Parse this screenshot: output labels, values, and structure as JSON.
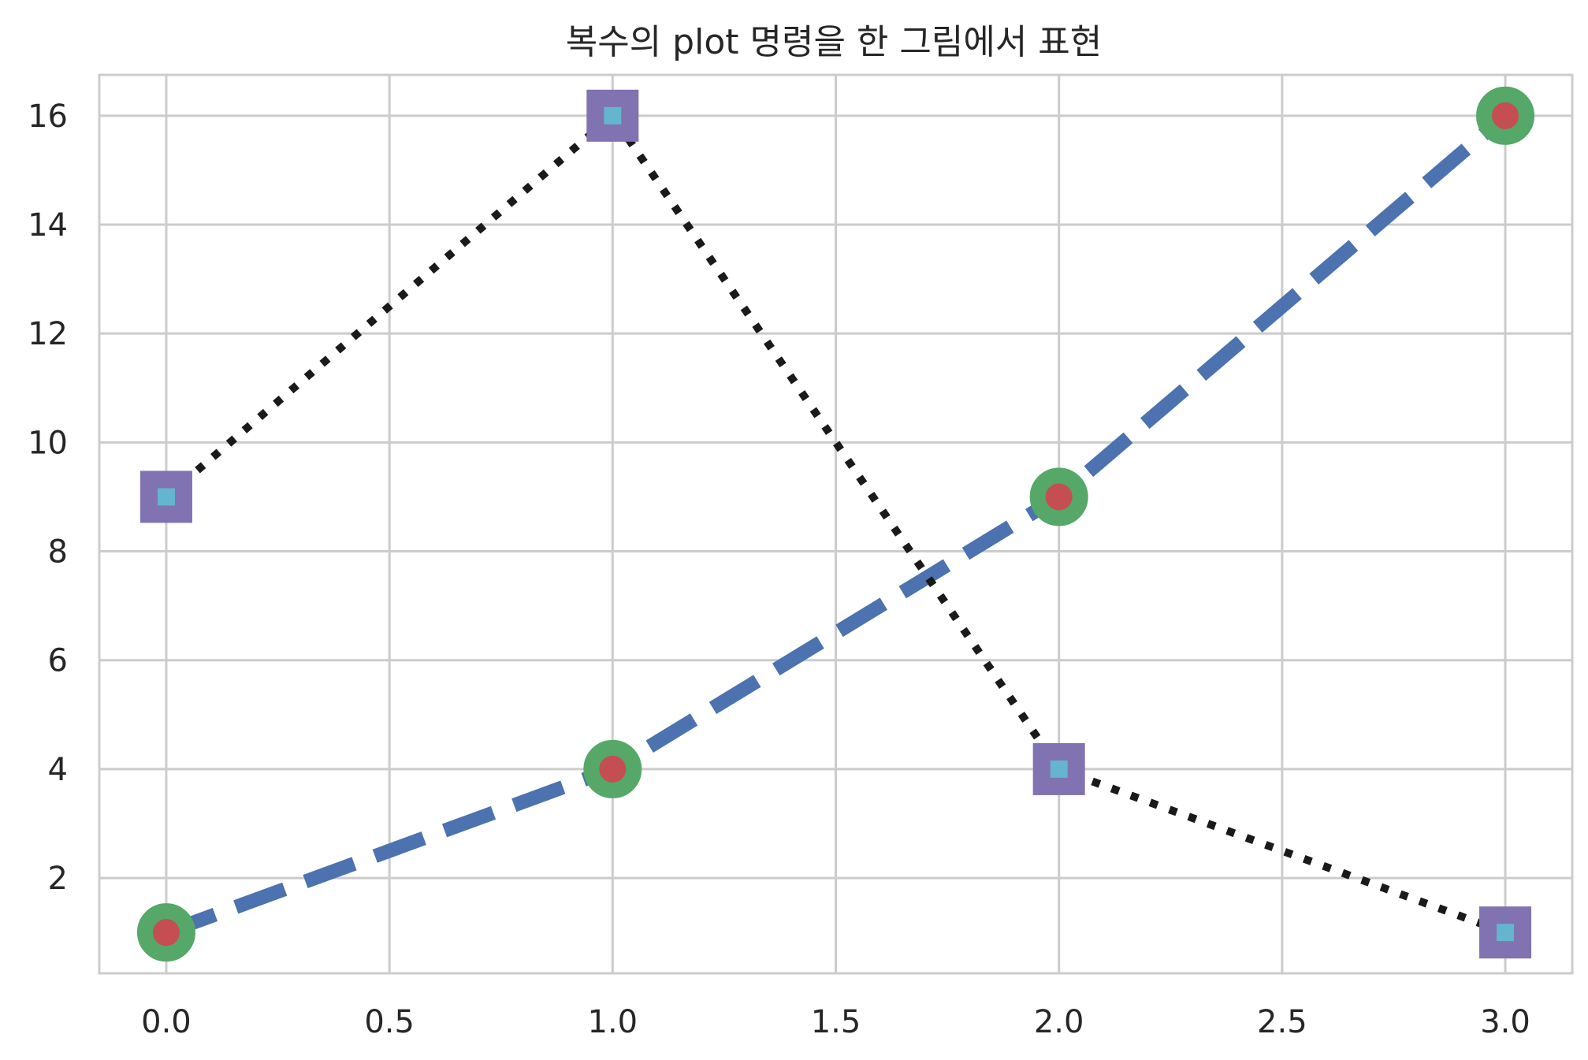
{
  "chart_data": {
    "type": "line",
    "title": "복수의 plot 명령을 한 그림에서 표현",
    "xlabel": "",
    "ylabel": "",
    "xlim": [
      -0.15,
      3.15
    ],
    "ylim": [
      0.25,
      16.75
    ],
    "xticks": [
      0.0,
      0.5,
      1.0,
      1.5,
      2.0,
      2.5,
      3.0
    ],
    "xtick_labels": [
      "0.0",
      "0.5",
      "1.0",
      "1.5",
      "2.0",
      "2.5",
      "3.0"
    ],
    "yticks": [
      2,
      4,
      6,
      8,
      10,
      12,
      14,
      16
    ],
    "ytick_labels": [
      "2",
      "4",
      "6",
      "8",
      "10",
      "12",
      "14",
      "16"
    ],
    "grid": true,
    "series": [
      {
        "x": [
          0,
          1,
          2,
          3
        ],
        "values": [
          1,
          4,
          9,
          16
        ],
        "line_style": "dashed",
        "line_color": "#4C72B0",
        "marker": "circle",
        "marker_face_color": "#C44E52",
        "marker_edge_color": "#55A868"
      },
      {
        "x": [
          0,
          1,
          2,
          3
        ],
        "values": [
          9,
          16,
          4,
          1
        ],
        "line_style": "dotted",
        "line_color": "#1A1A1A",
        "marker": "square",
        "marker_face_color": "#64B5CD",
        "marker_edge_color": "#8172B2"
      }
    ]
  },
  "colors": {
    "grid": "#CCCCCC",
    "axes_edge": "#CCCCCC",
    "text": "#262626",
    "background": "#FFFFFF"
  }
}
